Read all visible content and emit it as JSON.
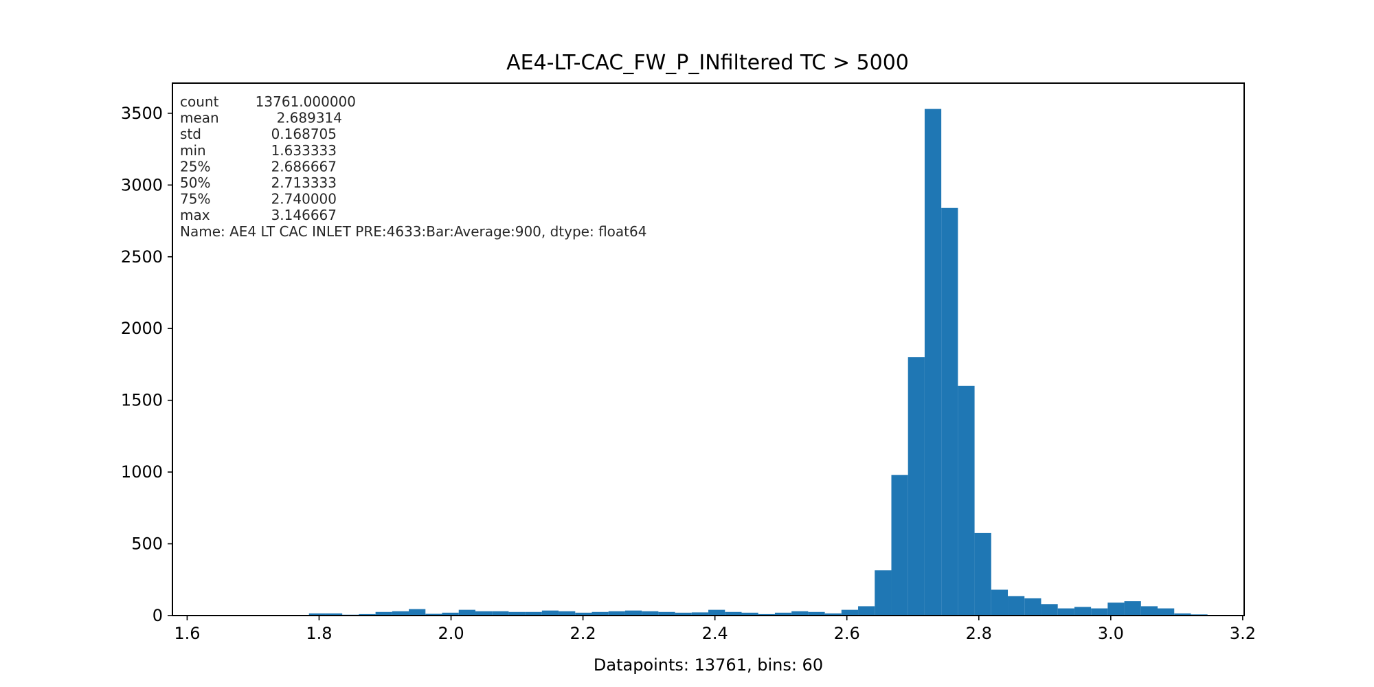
{
  "chart_data": {
    "type": "bar",
    "title": "AE4-LT-CAC_FW_P_INfiltered TC > 5000",
    "xlabel": "Datapoints: 13761, bins: 60",
    "ylabel": "",
    "xlim": [
      1.5777,
      3.2022
    ],
    "ylim": [
      0,
      3710
    ],
    "bin_start": 1.633333,
    "bin_end": 3.146667,
    "bins": 60,
    "values": [
      0,
      0,
      0,
      0,
      0,
      0,
      15,
      15,
      6,
      10,
      25,
      30,
      45,
      12,
      20,
      40,
      30,
      30,
      25,
      25,
      35,
      30,
      20,
      25,
      30,
      35,
      30,
      25,
      20,
      22,
      40,
      25,
      20,
      10,
      20,
      30,
      25,
      15,
      40,
      65,
      315,
      980,
      1800,
      3530,
      2840,
      1600,
      575,
      180,
      135,
      120,
      80,
      50,
      60,
      50,
      90,
      100,
      65,
      50,
      15,
      8
    ],
    "xticks": [
      {
        "value": 1.6,
        "label": "1.6"
      },
      {
        "value": 1.8,
        "label": "1.8"
      },
      {
        "value": 2.0,
        "label": "2.0"
      },
      {
        "value": 2.2,
        "label": "2.2"
      },
      {
        "value": 2.4,
        "label": "2.4"
      },
      {
        "value": 2.6,
        "label": "2.6"
      },
      {
        "value": 2.8,
        "label": "2.8"
      },
      {
        "value": 3.0,
        "label": "3.0"
      },
      {
        "value": 3.2,
        "label": "3.2"
      }
    ],
    "yticks": [
      {
        "value": 0,
        "label": "0"
      },
      {
        "value": 500,
        "label": "500"
      },
      {
        "value": 1000,
        "label": "1000"
      },
      {
        "value": 1500,
        "label": "1500"
      },
      {
        "value": 2000,
        "label": "2000"
      },
      {
        "value": 2500,
        "label": "2500"
      },
      {
        "value": 3000,
        "label": "3000"
      },
      {
        "value": 3500,
        "label": "3500"
      }
    ],
    "bar_color": "#1f77b4",
    "grid": false,
    "legend": "none",
    "stats_box": [
      {
        "key": "count",
        "value": "13761.000000"
      },
      {
        "key": "mean",
        "value": "2.689314"
      },
      {
        "key": "std",
        "value": "0.168705"
      },
      {
        "key": "min",
        "value": "1.633333"
      },
      {
        "key": "25%",
        "value": "2.686667"
      },
      {
        "key": "50%",
        "value": "2.713333"
      },
      {
        "key": "75%",
        "value": "2.740000"
      },
      {
        "key": "max",
        "value": "3.146667"
      }
    ],
    "stats_footer": "Name: AE4 LT CAC INLET PRE:4633:Bar:Average:900, dtype: float64"
  }
}
